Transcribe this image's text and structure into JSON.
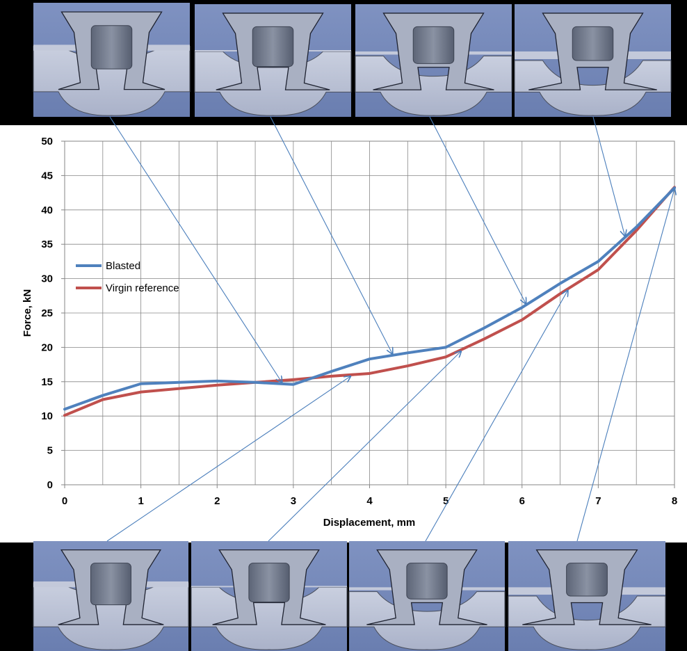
{
  "chart_data": {
    "type": "line",
    "title": "",
    "xlabel": "Displacement, mm",
    "ylabel": "Force, kN",
    "xlim": [
      0,
      8
    ],
    "ylim": [
      0,
      50
    ],
    "x_ticks": [
      "0",
      "1",
      "2",
      "3",
      "4",
      "5",
      "6",
      "7",
      "8"
    ],
    "y_ticks": [
      "0",
      "5",
      "10",
      "15",
      "20",
      "25",
      "30",
      "35",
      "40",
      "45",
      "50"
    ],
    "grid": true,
    "legend_position": "left",
    "series": [
      {
        "name": "Blasted",
        "color": "#4f81bd",
        "x": [
          0,
          0.5,
          1,
          2,
          2.5,
          3,
          3.5,
          4,
          4.5,
          5,
          5.5,
          6,
          6.5,
          7,
          7.5,
          8
        ],
        "y": [
          11,
          13,
          14.7,
          15.1,
          14.9,
          14.6,
          16.5,
          18.3,
          19.2,
          20.0,
          22.8,
          25.8,
          29.3,
          32.5,
          37.5,
          43.2
        ]
      },
      {
        "name": "Virgin reference",
        "color": "#c0504d",
        "x": [
          0,
          0.5,
          1,
          2,
          2.5,
          3,
          3.5,
          4,
          4.5,
          5,
          5.5,
          6,
          6.5,
          7,
          7.5,
          8
        ],
        "y": [
          10.1,
          12.4,
          13.5,
          14.5,
          14.9,
          15.3,
          15.8,
          16.2,
          17.3,
          18.6,
          21.2,
          24.0,
          27.8,
          31.3,
          37.0,
          43.3
        ]
      }
    ],
    "photo_links": {
      "top": [
        2.85,
        4.3,
        6.05,
        7.35
      ],
      "bottom": [
        3.75,
        5.2,
        6.6,
        8.0
      ]
    }
  }
}
